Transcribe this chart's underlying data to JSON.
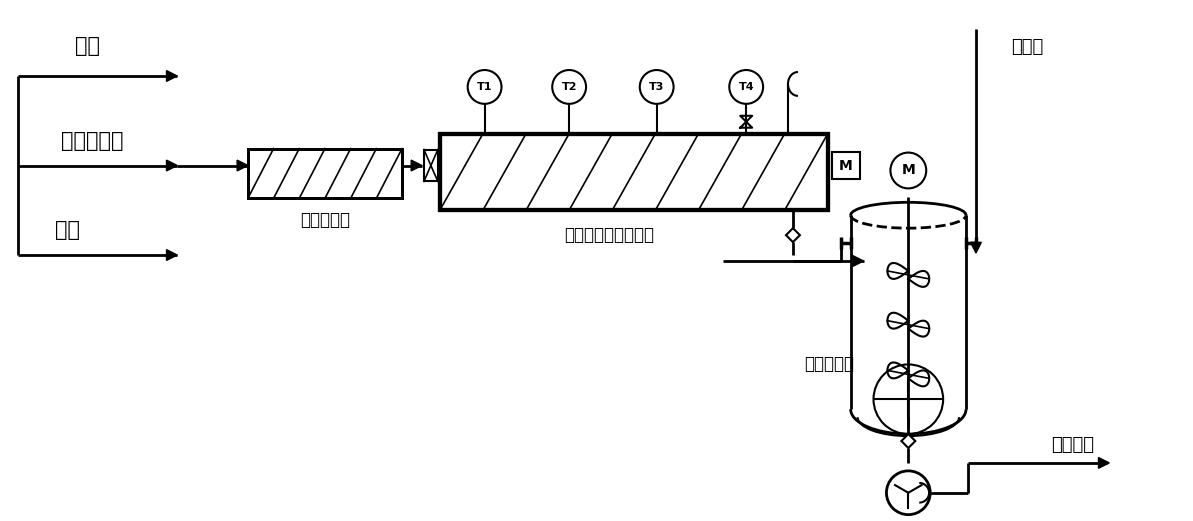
{
  "bg_color": "#ffffff",
  "line_color": "#000000",
  "labels": {
    "pseudoionone": "假紫",
    "catalyst": "复合催化剂",
    "solvent": "溶剂",
    "static_mixer": "静态混合器",
    "tubular_reactor": "带搅拌的管道反应器",
    "quench_tank": "猝灭搅拌釜",
    "purified_water": "纯化水",
    "post_process": "去后处理",
    "T1": "T1",
    "T2": "T2",
    "T3": "T3",
    "T4": "T4",
    "M_box": "M",
    "M_circle": "M"
  },
  "figsize": [
    11.93,
    5.21
  ],
  "dpi": 100
}
